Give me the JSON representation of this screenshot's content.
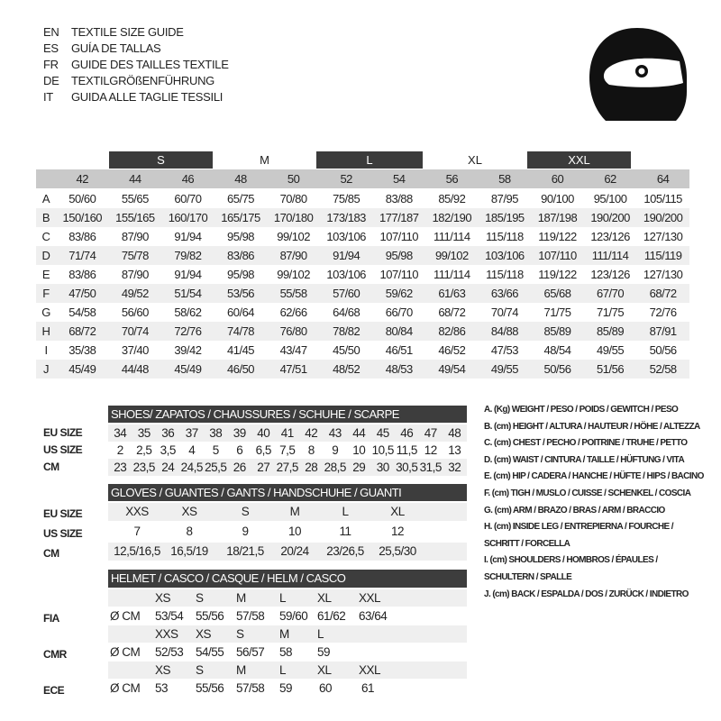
{
  "languages": [
    {
      "code": "EN",
      "text": "TEXTILE SIZE GUIDE"
    },
    {
      "code": "ES",
      "text": "GUÍA DE TALLAS"
    },
    {
      "code": "FR",
      "text": "GUIDE DES TAILLES TEXTILE"
    },
    {
      "code": "DE",
      "text": "TEXTILGRÖßENFÜHRUNG"
    },
    {
      "code": "IT",
      "text": "GUIDA ALLE TAGLIE TESSILI"
    }
  ],
  "icon": "helmet-icon",
  "textile": {
    "bands": [
      "S",
      "M",
      "L",
      "XL",
      "XXL"
    ],
    "sizes": [
      "42",
      "44",
      "46",
      "48",
      "50",
      "52",
      "54",
      "56",
      "58",
      "60",
      "62",
      "64"
    ],
    "rows": [
      {
        "letter": "A",
        "values": [
          "50/60",
          "55/65",
          "60/70",
          "65/75",
          "70/80",
          "75/85",
          "83/88",
          "85/92",
          "87/95",
          "90/100",
          "95/100",
          "105/115"
        ]
      },
      {
        "letter": "B",
        "values": [
          "150/160",
          "155/165",
          "160/170",
          "165/175",
          "170/180",
          "173/183",
          "177/187",
          "182/190",
          "185/195",
          "187/198",
          "190/200",
          "190/200"
        ]
      },
      {
        "letter": "C",
        "values": [
          "83/86",
          "87/90",
          "91/94",
          "95/98",
          "99/102",
          "103/106",
          "107/110",
          "111/114",
          "115/118",
          "119/122",
          "123/126",
          "127/130"
        ]
      },
      {
        "letter": "D",
        "values": [
          "71/74",
          "75/78",
          "79/82",
          "83/86",
          "87/90",
          "91/94",
          "95/98",
          "99/102",
          "103/106",
          "107/110",
          "111/114",
          "115/119"
        ]
      },
      {
        "letter": "E",
        "values": [
          "83/86",
          "87/90",
          "91/94",
          "95/98",
          "99/102",
          "103/106",
          "107/110",
          "111/114",
          "115/118",
          "119/122",
          "123/126",
          "127/130"
        ]
      },
      {
        "letter": "F",
        "values": [
          "47/50",
          "49/52",
          "51/54",
          "53/56",
          "55/58",
          "57/60",
          "59/62",
          "61/63",
          "63/66",
          "65/68",
          "67/70",
          "68/72"
        ]
      },
      {
        "letter": "G",
        "values": [
          "54/58",
          "56/60",
          "58/62",
          "60/64",
          "62/66",
          "64/68",
          "66/70",
          "68/72",
          "70/74",
          "71/75",
          "71/75",
          "72/76"
        ]
      },
      {
        "letter": "H",
        "values": [
          "68/72",
          "70/74",
          "72/76",
          "74/78",
          "76/80",
          "78/82",
          "80/84",
          "82/86",
          "84/88",
          "85/89",
          "85/89",
          "87/91"
        ]
      },
      {
        "letter": "I",
        "values": [
          "35/38",
          "37/40",
          "39/42",
          "41/45",
          "43/47",
          "45/50",
          "46/51",
          "46/52",
          "47/53",
          "48/54",
          "49/55",
          "50/56"
        ]
      },
      {
        "letter": "J",
        "values": [
          "45/49",
          "44/48",
          "45/49",
          "46/50",
          "47/51",
          "48/52",
          "48/53",
          "49/54",
          "49/55",
          "50/56",
          "51/56",
          "52/58"
        ]
      }
    ]
  },
  "shoes": {
    "title": "SHOES/ ZAPATOS / CHAUSSURES / SCHUHE / SCARPE",
    "labels": [
      "EU SIZE",
      "US SIZE",
      "CM"
    ],
    "eu": [
      "34",
      "35",
      "36",
      "37",
      "38",
      "39",
      "40",
      "41",
      "42",
      "43",
      "44",
      "45",
      "46",
      "47",
      "48"
    ],
    "us": [
      "2",
      "2,5",
      "3,5",
      "4",
      "5",
      "6",
      "6,5",
      "7,5",
      "8",
      "9",
      "10",
      "10,5",
      "11,5",
      "12",
      "13"
    ],
    "cm": [
      "23",
      "23,5",
      "24",
      "24,5",
      "25,5",
      "26",
      "27",
      "27,5",
      "28",
      "28,5",
      "29",
      "30",
      "30,5",
      "31,5",
      "32"
    ]
  },
  "gloves": {
    "title": "GLOVES / GUANTES / GANTS / HANDSCHUHE / GUANTI",
    "labels": [
      "EU SIZE",
      "US SIZE",
      "CM"
    ],
    "eu": [
      "XXS",
      "XS",
      "S",
      "M",
      "L",
      "XL"
    ],
    "us": [
      "7",
      "8",
      "9",
      "10",
      "11",
      "12"
    ],
    "cm": [
      "12,5/16,5",
      "16,5/19",
      "18/21,5",
      "20/24",
      "23/26,5",
      "25,5/30"
    ]
  },
  "helmet": {
    "title": "HELMET / CASCO / CASQUE / HELM / CASCO",
    "unit": "Ø CM",
    "standards": [
      {
        "label": "FIA",
        "sizes": [
          "XS",
          "S",
          "M",
          "L",
          "XL",
          "XXL"
        ],
        "values": [
          "53/54",
          "55/56",
          "57/58",
          "59/60",
          "61/62",
          "63/64"
        ]
      },
      {
        "label": "CMR",
        "sizes": [
          "XXS",
          "XS",
          "S",
          "M",
          "L"
        ],
        "values": [
          "52/53",
          "54/55",
          "56/57",
          "58",
          "59"
        ]
      },
      {
        "label": "ECE",
        "sizes": [
          "XS",
          "S",
          "M",
          "L",
          "XL",
          "XXL"
        ],
        "values": [
          "53",
          "55/56",
          "57/58",
          "59",
          "60",
          "61"
        ]
      }
    ]
  },
  "legend": [
    "A. (Kg) WEIGHT / PESO / POIDS / GEWITCH / PESO",
    "B. (cm) HEIGHT / ALTURA / HAUTEUR / HÖHE / ALTEZZA",
    "C. (cm) CHEST / PECHO / POITRINE / TRUHE / PETTO",
    "D. (cm) WAIST / CINTURA / TAILLE / HÜFTUNG / VITA",
    "E. (cm) HIP / CADERA / HANCHE / HÜFTE / HIPS /  BACINO",
    "F.  (cm) TIGH / MUSLO / CUISSE / SCHENKEL / COSCIA",
    "G. (cm) ARM  / BRAZO / BRAS / ARM / BRACCIO",
    "H. (cm) INSIDE LEG / ENTREPIERNA / FOURCHE /",
    "SCHRITT / FORCELLA",
    "I.  (cm) SHOULDERS / HOMBROS / ÉPAULES /",
    "SCHULTERN / SPALLE",
    "J. (cm) BACK / ESPALDA / DOS / ZURÜCK / INDIETRO"
  ]
}
